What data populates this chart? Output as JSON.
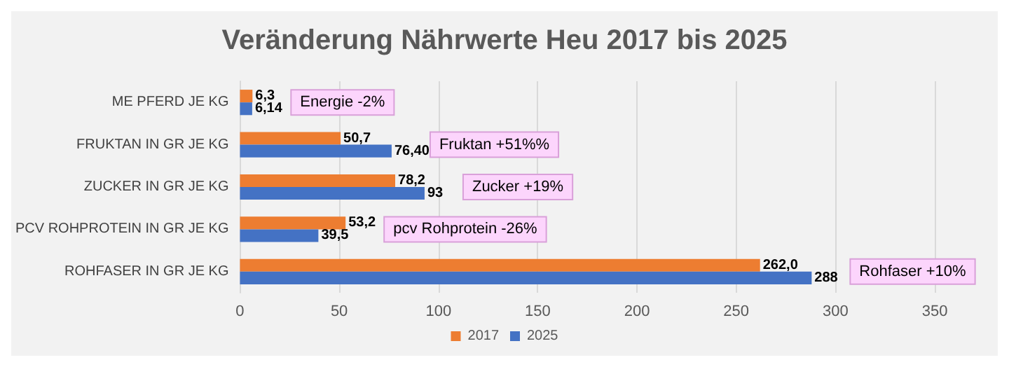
{
  "chart_data": {
    "type": "bar",
    "orientation": "horizontal",
    "title": "Veränderung Nährwerte Heu 2017 bis 2025",
    "categories": [
      "ME PFERD JE KG",
      "FRUKTAN IN GR JE KG",
      "ZUCKER IN GR JE KG",
      "PCV ROHPROTEIN IN GR JE KG",
      "ROHFASER IN GR JE KG"
    ],
    "series": [
      {
        "name": "2017",
        "color": "#ed7d31",
        "values": [
          6.3,
          50.7,
          78.2,
          53.2,
          262.0
        ],
        "value_labels": [
          "6,3",
          "50,7",
          "78,2",
          "53,2",
          "262,0"
        ]
      },
      {
        "name": "2025",
        "color": "#4472c4",
        "values": [
          6.14,
          76.4,
          93,
          39.5,
          288
        ],
        "value_labels": [
          "6,14",
          "76,40",
          "93",
          "39,5",
          "288"
        ]
      }
    ],
    "xlim": [
      0,
      350
    ],
    "xticks": [
      0,
      50,
      100,
      150,
      200,
      250,
      300,
      350
    ],
    "grid": "x",
    "legend": "bottom",
    "annotations": [
      "Energie -2%",
      "Fruktan +51%%",
      "Zucker +19%",
      "pcv Rohprotein -26%",
      "Rohfaser +10%"
    ]
  }
}
